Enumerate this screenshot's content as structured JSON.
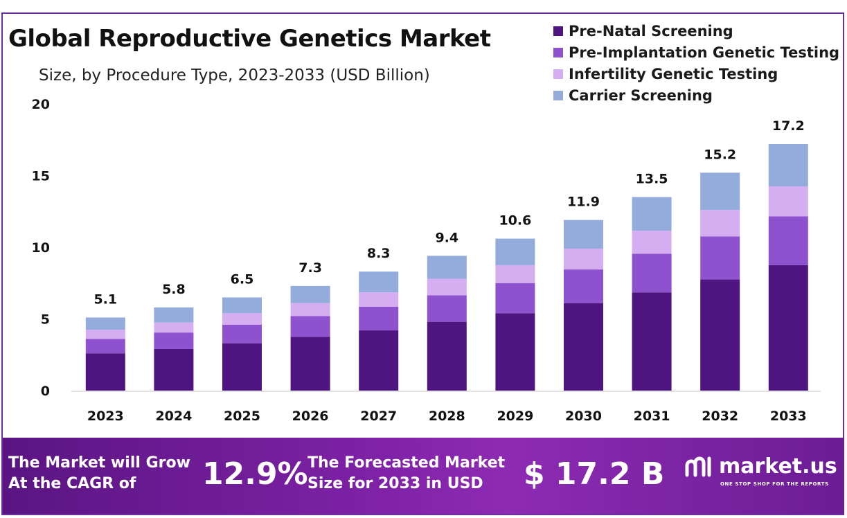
{
  "title": "Global Reproductive Genetics Market",
  "subtitle": "Size, by Procedure  Type, 2023-2033 (USD Billion)",
  "colors": {
    "frame": "#6c2f9e",
    "prenatal": "#4e1580",
    "preimplantation": "#8e52cf",
    "infertility": "#d4aef0",
    "carrier": "#93acdc"
  },
  "chart_data": {
    "type": "bar",
    "stacked": true,
    "categories": [
      "2023",
      "2024",
      "2025",
      "2026",
      "2027",
      "2028",
      "2029",
      "2030",
      "2031",
      "2032",
      "2033"
    ],
    "series": [
      {
        "name": "Pre-Natal Screening",
        "color": "#4e1580",
        "values": [
          2.6,
          2.9,
          3.3,
          3.75,
          4.2,
          4.8,
          5.4,
          6.1,
          6.85,
          7.75,
          8.75
        ]
      },
      {
        "name": "Pre-Implantation Genetic Testing",
        "color": "#8e52cf",
        "values": [
          1.0,
          1.15,
          1.3,
          1.45,
          1.65,
          1.85,
          2.1,
          2.35,
          2.7,
          3.0,
          3.4
        ]
      },
      {
        "name": "Infertility Genetic Testing",
        "color": "#d4aef0",
        "values": [
          0.65,
          0.7,
          0.8,
          0.9,
          1.0,
          1.15,
          1.25,
          1.45,
          1.6,
          1.85,
          2.1
        ]
      },
      {
        "name": "Carrier Screening",
        "color": "#93acdc",
        "values": [
          0.85,
          1.05,
          1.1,
          1.2,
          1.45,
          1.6,
          1.85,
          2.0,
          2.35,
          2.6,
          2.95
        ]
      }
    ],
    "totals": [
      "5.1",
      "5.8",
      "6.5",
      "7.3",
      "8.3",
      "9.4",
      "10.6",
      "11.9",
      "13.5",
      "15.2",
      "17.2"
    ],
    "y_ticks": [
      "0",
      "5",
      "10",
      "15",
      "20"
    ],
    "ylim": [
      0,
      20
    ],
    "grid": false,
    "legend_position": "top-right"
  },
  "footer": {
    "cagr_line1": "The Market will Grow",
    "cagr_line2": "At the CAGR of",
    "cagr_value": "12.9%",
    "forecast_line1": "The Forecasted Market",
    "forecast_line2": "Size for 2033 in USD",
    "forecast_value": "$ 17.2 B"
  },
  "logo": {
    "name": "market.us",
    "tagline": "ONE STOP SHOP FOR THE REPORTS"
  }
}
